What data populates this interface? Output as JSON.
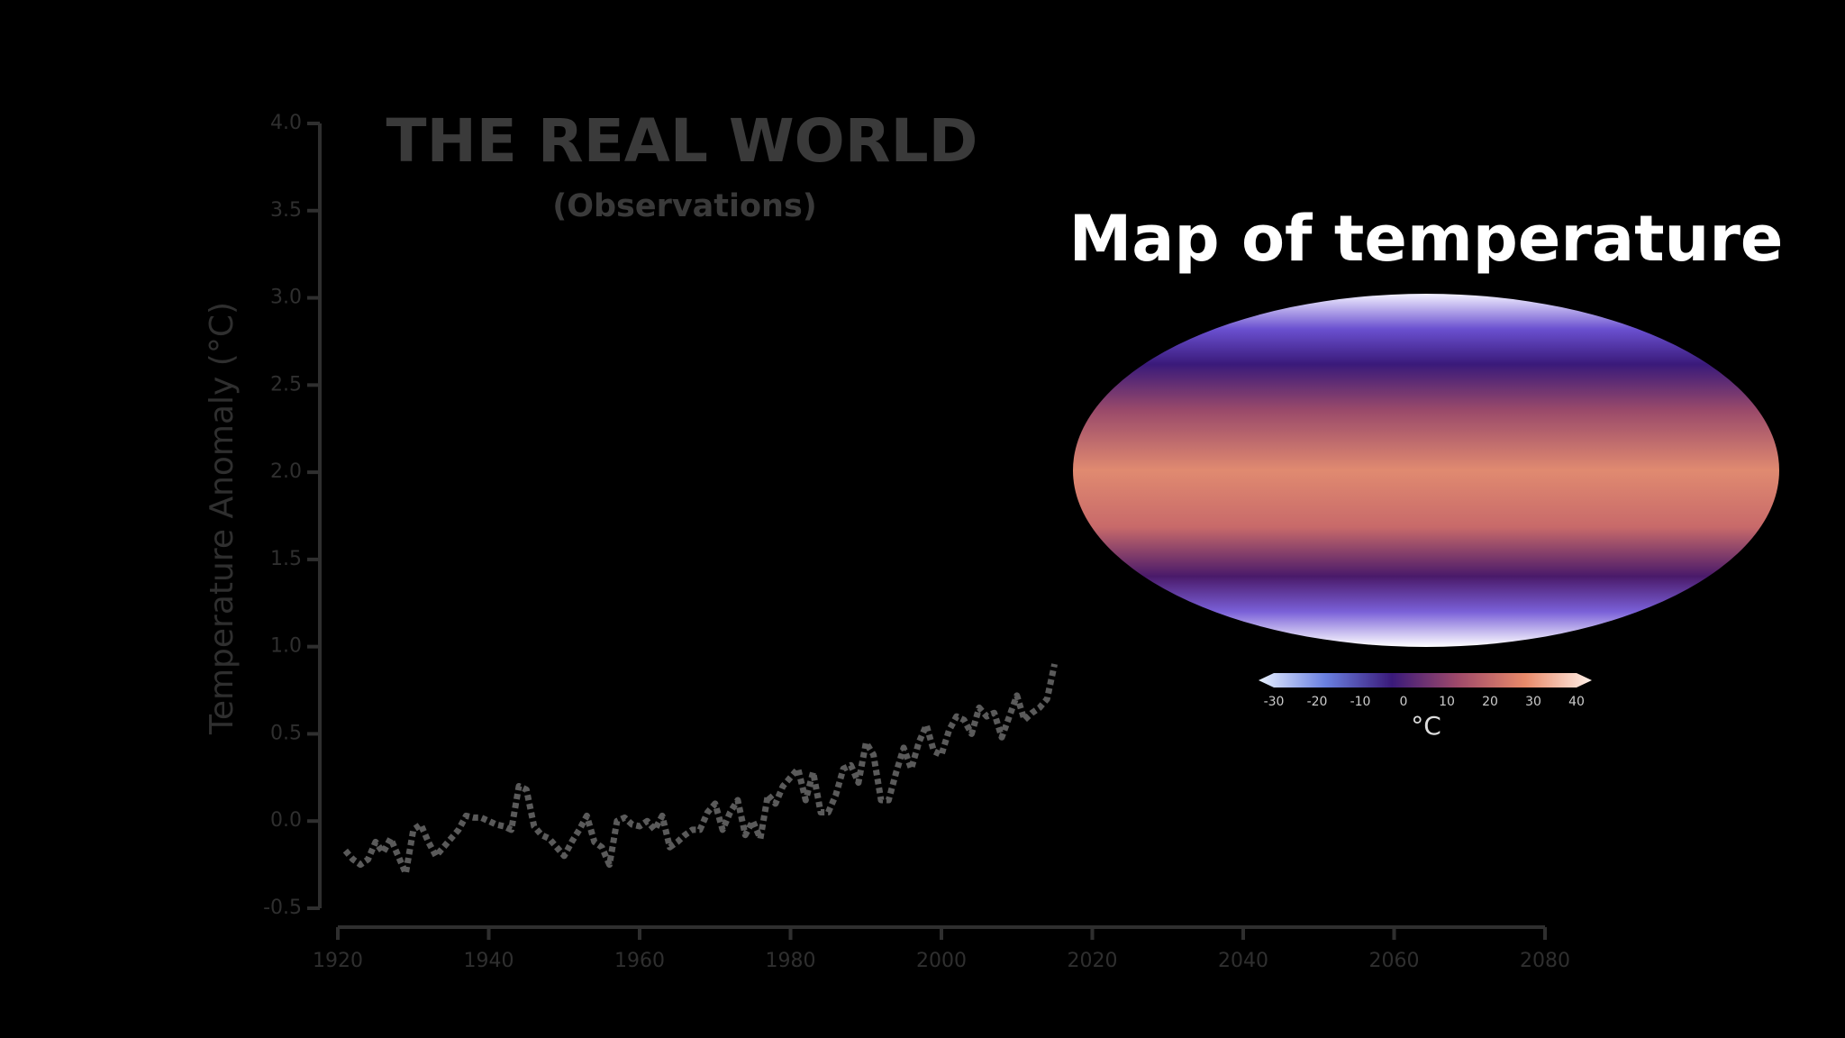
{
  "chart_data": {
    "type": "line",
    "title": "THE REAL WORLD",
    "subtitle": "(Observations)",
    "y_label": "Temperature Anomaly (°C)",
    "xlim": [
      1920,
      2080
    ],
    "xticks": [
      1920,
      1940,
      1960,
      1980,
      2000,
      2020,
      2040,
      2060,
      2080
    ],
    "ylim": [
      -0.5,
      4.0
    ],
    "yticks": [
      -0.5,
      {
        "value": 0,
        "label": "0.0"
      },
      0.5,
      {
        "value": 1,
        "label": "1.0"
      },
      1.5,
      {
        "value": 2,
        "label": "2.0"
      },
      2.5,
      {
        "value": 3,
        "label": "3.0"
      },
      3.5,
      {
        "value": 4,
        "label": "4.0"
      }
    ],
    "axis_color": "#2f2f2f",
    "x": [
      1921,
      1922,
      1923,
      1924,
      1925,
      1926,
      1927,
      1928,
      1929,
      1930,
      1931,
      1932,
      1933,
      1934,
      1935,
      1936,
      1937,
      1938,
      1939,
      1940,
      1941,
      1942,
      1943,
      1944,
      1945,
      1946,
      1947,
      1948,
      1949,
      1950,
      1951,
      1952,
      1953,
      1954,
      1955,
      1956,
      1957,
      1958,
      1959,
      1960,
      1961,
      1962,
      1963,
      1964,
      1965,
      1966,
      1967,
      1968,
      1969,
      1970,
      1971,
      1972,
      1973,
      1974,
      1975,
      1976,
      1977,
      1978,
      1979,
      1980,
      1981,
      1982,
      1983,
      1984,
      1985,
      1986,
      1987,
      1988,
      1989,
      1990,
      1991,
      1992,
      1993,
      1994,
      1995,
      1996,
      1997,
      1998,
      1999,
      2000,
      2001,
      2002,
      2003,
      2004,
      2005,
      2006,
      2007,
      2008,
      2009,
      2010,
      2011,
      2012,
      2013,
      2014,
      2015
    ],
    "series": [
      {
        "color": "#5a5a5a",
        "values": [
          -0.17,
          -0.22,
          -0.25,
          -0.22,
          -0.12,
          -0.18,
          -0.1,
          -0.2,
          -0.3,
          -0.05,
          -0.02,
          -0.12,
          -0.2,
          -0.15,
          -0.1,
          -0.05,
          0.03,
          0.02,
          0.02,
          0.0,
          -0.02,
          -0.03,
          -0.05,
          0.2,
          0.18,
          -0.03,
          -0.08,
          -0.1,
          -0.15,
          -0.2,
          -0.12,
          -0.05,
          0.03,
          -0.12,
          -0.15,
          -0.25,
          0.0,
          0.02,
          -0.02,
          -0.03,
          0.0,
          -0.05,
          0.03,
          -0.15,
          -0.12,
          -0.08,
          -0.05,
          -0.05,
          0.05,
          0.1,
          -0.05,
          0.05,
          0.12,
          -0.08,
          0.0,
          -0.1,
          0.15,
          0.1,
          0.2,
          0.25,
          0.3,
          0.12,
          0.28,
          0.05,
          0.05,
          0.15,
          0.3,
          0.32,
          0.22,
          0.45,
          0.38,
          0.12,
          0.12,
          0.28,
          0.42,
          0.3,
          0.45,
          0.55,
          0.4,
          0.38,
          0.52,
          0.6,
          0.58,
          0.5,
          0.65,
          0.6,
          0.62,
          0.48,
          0.6,
          0.72,
          0.58,
          0.62,
          0.65,
          0.7,
          0.9
        ]
      }
    ]
  },
  "map": {
    "title": "Map of temperature",
    "colorbar": {
      "ticks": [
        -30,
        -20,
        -10,
        0,
        10,
        20,
        30,
        40
      ],
      "label": "°C"
    }
  }
}
